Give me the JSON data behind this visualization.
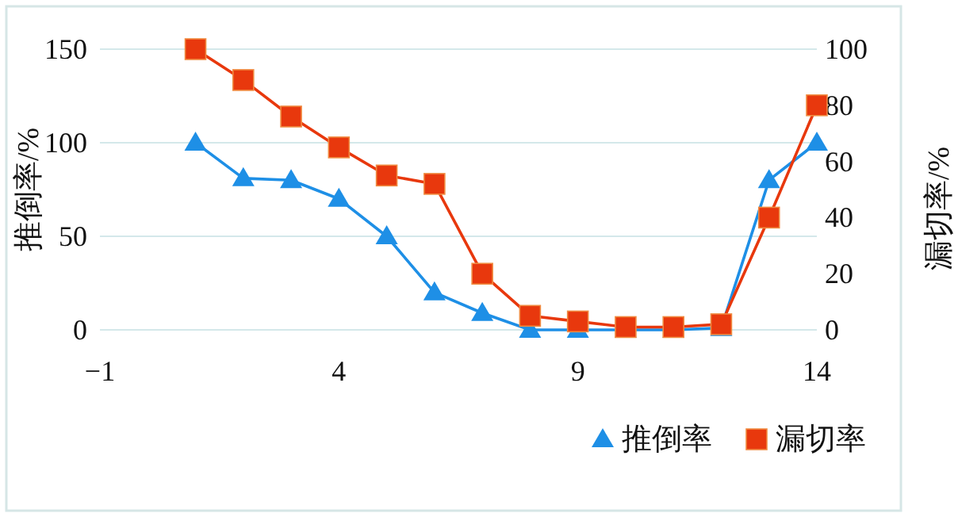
{
  "chart_data": {
    "type": "line",
    "xlabel": null,
    "ylabel": "推倒率/%",
    "y2label": "漏切率/%",
    "x": [
      1,
      2,
      3,
      4,
      5,
      6,
      7,
      8,
      9,
      10,
      11,
      12,
      13,
      14
    ],
    "xlim": [
      -1,
      14
    ],
    "xticks": [
      -1,
      4,
      9,
      14
    ],
    "ylim": [
      0,
      150
    ],
    "yticks": [
      0,
      50,
      100,
      150
    ],
    "y2lim": [
      0,
      100
    ],
    "y2ticks": [
      0,
      20,
      40,
      60,
      80,
      100
    ],
    "grid": "y",
    "legend": "bottom right",
    "series": [
      {
        "name": "推倒率",
        "color": "#1e8fe6",
        "marker": "triangle",
        "values": [
          100,
          81,
          80,
          70,
          50,
          20,
          9,
          0,
          0,
          0,
          0,
          1,
          80,
          100
        ]
      },
      {
        "name": "漏切率",
        "color": "#e8380d",
        "marker": "square",
        "axis": "y2",
        "values": [
          100,
          89,
          76,
          65,
          55,
          52,
          20,
          5,
          3,
          1,
          1,
          2,
          40,
          80
        ]
      }
    ]
  }
}
